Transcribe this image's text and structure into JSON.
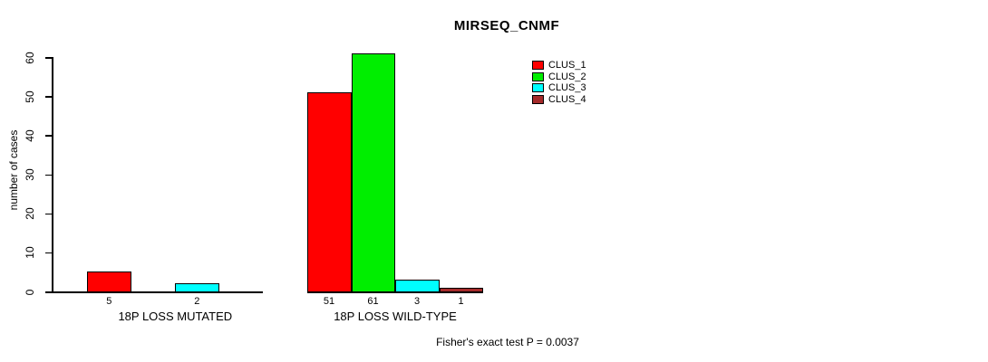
{
  "chart_data": {
    "type": "bar",
    "title": "MIRSEQ_CNMF",
    "xlabel": "",
    "ylabel": "number of cases",
    "ylim": [
      0,
      60
    ],
    "yticks": [
      0,
      10,
      20,
      30,
      40,
      50,
      60
    ],
    "grid": false,
    "legend_position": "top-right",
    "series": [
      {
        "name": "CLUS_1",
        "color": "#ff0000"
      },
      {
        "name": "CLUS_2",
        "color": "#00ee00"
      },
      {
        "name": "CLUS_3",
        "color": "#00ffff"
      },
      {
        "name": "CLUS_4",
        "color": "#a52a2a"
      }
    ],
    "groups": [
      {
        "label": "18P LOSS MUTATED",
        "values": [
          5,
          0,
          2,
          0
        ]
      },
      {
        "label": "18P LOSS WILD-TYPE",
        "values": [
          51,
          61,
          3,
          1
        ]
      }
    ],
    "bar_value_labels_shown_for_nonzero_only": true,
    "annotation": "Fisher's exact test P = 0.0037"
  }
}
